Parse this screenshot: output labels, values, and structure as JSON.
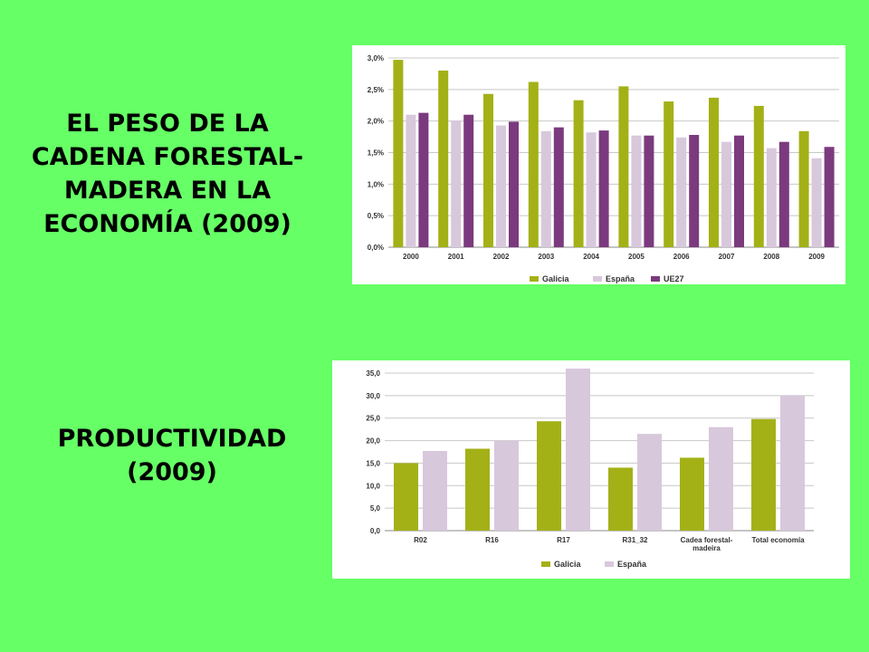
{
  "headings": {
    "weight": "EL PESO DE LA\nCADENA FORESTAL-\nMADERA EN LA\nECONOMÍA (2009)",
    "productivity": "PRODUCTIVIDAD\n(2009)"
  },
  "chart_data": [
    {
      "type": "bar",
      "title": "",
      "xlabel": "",
      "ylabel": "",
      "categories": [
        "2000",
        "2001",
        "2002",
        "2003",
        "2004",
        "2005",
        "2006",
        "2007",
        "2008",
        "2009"
      ],
      "series": [
        {
          "name": "Galicia",
          "color": "#a3b117",
          "values": [
            2.97,
            2.8,
            2.43,
            2.62,
            2.33,
            2.55,
            2.31,
            2.37,
            2.24,
            1.84
          ]
        },
        {
          "name": "España",
          "color": "#d8c8dc",
          "values": [
            2.1,
            2.01,
            1.93,
            1.84,
            1.82,
            1.77,
            1.74,
            1.67,
            1.57,
            1.41
          ]
        },
        {
          "name": "UE27",
          "color": "#7b3a7e",
          "values": [
            2.13,
            2.1,
            1.99,
            1.9,
            1.85,
            1.77,
            1.78,
            1.77,
            1.67,
            1.59
          ]
        }
      ],
      "ylim": [
        0,
        3
      ],
      "yticks": [
        0,
        0.5,
        1,
        1.5,
        2,
        2.5,
        3
      ],
      "ytick_labels": [
        "0,0%",
        "0,5%",
        "1,0%",
        "1,5%",
        "2,0%",
        "2,5%",
        "3,0%"
      ],
      "grid": true,
      "legend": "bottom"
    },
    {
      "type": "bar",
      "title": "",
      "xlabel": "",
      "ylabel": "",
      "categories": [
        "R02",
        "R16",
        "R17",
        "R31_32",
        "Cadea forestal-\nmadeira",
        "Total economía"
      ],
      "series": [
        {
          "name": "Galicia",
          "color": "#a3b117",
          "values": [
            15.0,
            18.2,
            24.3,
            14.0,
            16.2,
            24.8
          ]
        },
        {
          "name": "España",
          "color": "#d8c8dc",
          "values": [
            17.7,
            20.0,
            36.0,
            21.5,
            23.0,
            30.0
          ]
        }
      ],
      "ylim": [
        0,
        35
      ],
      "yticks": [
        0,
        5,
        10,
        15,
        20,
        25,
        30,
        35
      ],
      "ytick_labels": [
        "0,0",
        "5,0",
        "10,0",
        "15,0",
        "20,0",
        "25,0",
        "30,0",
        "35,0"
      ],
      "grid": true,
      "legend": "bottom"
    }
  ]
}
